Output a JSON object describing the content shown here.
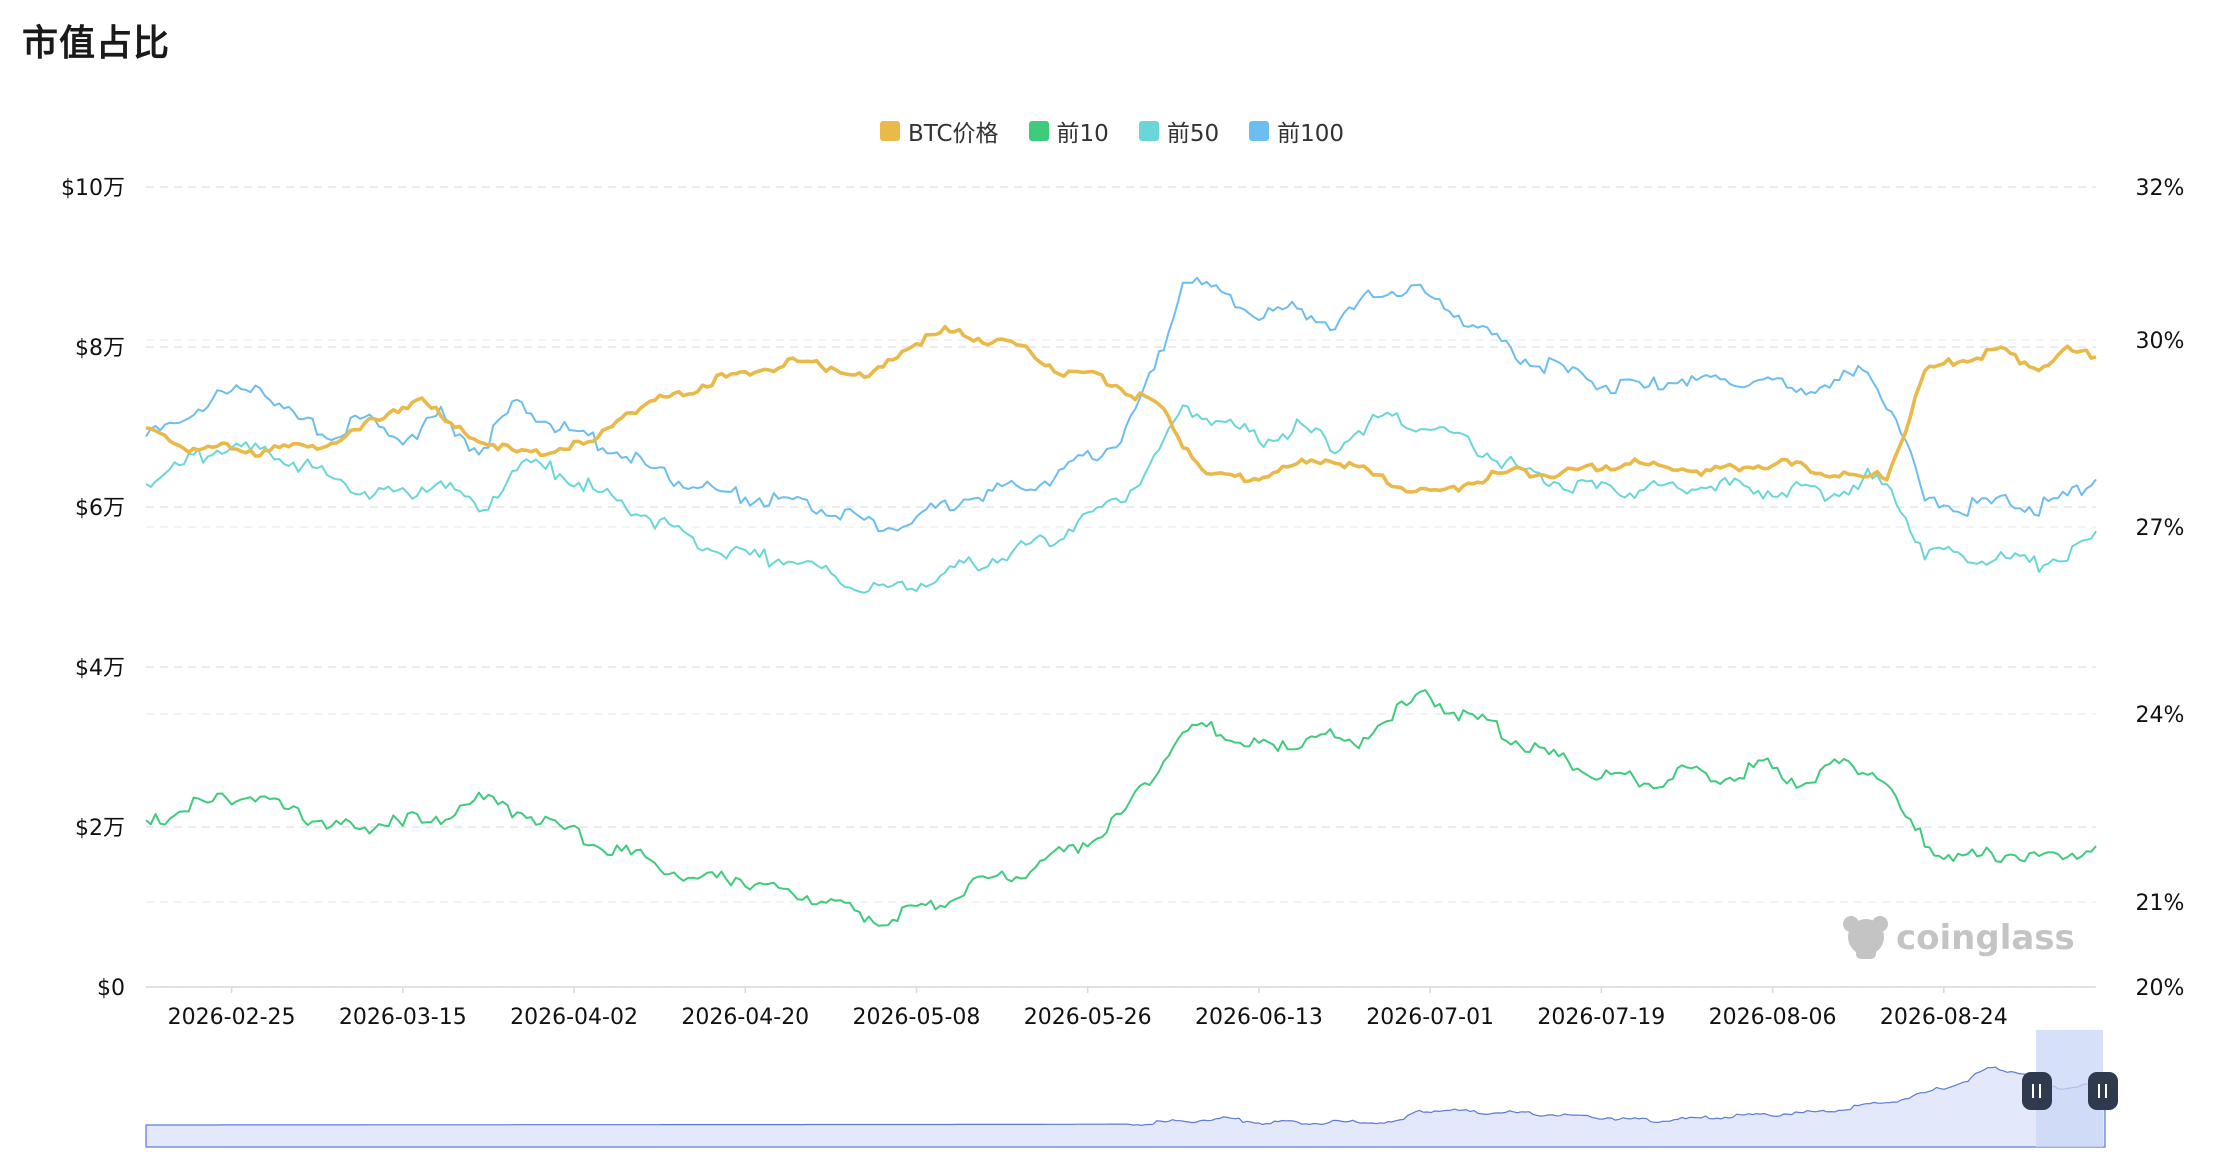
{
  "page": {
    "title": "市值占比",
    "watermark": "coinglass"
  },
  "legend": [
    {
      "label": "BTC价格",
      "color": "#E9B949"
    },
    {
      "label": "前10",
      "color": "#3FCB7C"
    },
    {
      "label": "前50",
      "color": "#6AD6D8"
    },
    {
      "label": "前100",
      "color": "#6CBEF0"
    }
  ],
  "chart_data": {
    "type": "line",
    "x_ticks": [
      "2026-02-25",
      "2026-03-15",
      "2026-04-02",
      "2026-04-20",
      "2026-05-08",
      "2026-05-26",
      "2026-06-13",
      "2026-07-01",
      "2026-07-19",
      "2026-08-06",
      "2026-08-24"
    ],
    "y_left": {
      "ticks": [
        "$0",
        "$2万",
        "$4万",
        "$6万",
        "$8万",
        "$10万"
      ],
      "values": [
        0,
        20000,
        40000,
        60000,
        80000,
        100000
      ],
      "ylim": [
        0,
        100000
      ]
    },
    "y_right": {
      "ticks": [
        "20%",
        "21%",
        "24%",
        "27%",
        "30%",
        "32%"
      ],
      "note": "non-linear axis; tick positions follow the chart"
    },
    "grid": true,
    "legend_position": "top-center",
    "date_range": [
      "2026-02-16",
      "2026-09-09"
    ],
    "series": [
      {
        "name": "BTC价格",
        "axis": "left",
        "color": "#E9B949",
        "points": [
          [
            "2026-02-16",
            70000
          ],
          [
            "2026-02-20",
            67000
          ],
          [
            "2026-02-23",
            68000
          ],
          [
            "2026-02-27",
            66500
          ],
          [
            "2026-03-02",
            68000
          ],
          [
            "2026-03-06",
            67000
          ],
          [
            "2026-03-10",
            70000
          ],
          [
            "2026-03-13",
            71000
          ],
          [
            "2026-03-17",
            74000
          ],
          [
            "2026-03-20",
            70000
          ],
          [
            "2026-03-24",
            68000
          ],
          [
            "2026-03-28",
            66500
          ],
          [
            "2026-04-01",
            67500
          ],
          [
            "2026-04-04",
            68000
          ],
          [
            "2026-04-07",
            71500
          ],
          [
            "2026-04-10",
            73000
          ],
          [
            "2026-04-14",
            74500
          ],
          [
            "2026-04-17",
            76000
          ],
          [
            "2026-04-21",
            77000
          ],
          [
            "2026-04-25",
            78000
          ],
          [
            "2026-04-29",
            77500
          ],
          [
            "2026-05-03",
            76000
          ],
          [
            "2026-05-07",
            80000
          ],
          [
            "2026-05-11",
            82000
          ],
          [
            "2026-05-15",
            81000
          ],
          [
            "2026-05-19",
            80000
          ],
          [
            "2026-05-23",
            77000
          ],
          [
            "2026-05-27",
            76500
          ],
          [
            "2026-05-31",
            74000
          ],
          [
            "2026-06-03",
            72000
          ],
          [
            "2026-06-05",
            68000
          ],
          [
            "2026-06-08",
            64000
          ],
          [
            "2026-06-12",
            63500
          ],
          [
            "2026-06-16",
            65000
          ],
          [
            "2026-06-20",
            66000
          ],
          [
            "2026-06-24",
            64500
          ],
          [
            "2026-06-28",
            62500
          ],
          [
            "2026-07-02",
            61500
          ],
          [
            "2026-07-06",
            63500
          ],
          [
            "2026-07-10",
            64500
          ],
          [
            "2026-07-14",
            64000
          ],
          [
            "2026-07-18",
            65000
          ],
          [
            "2026-07-22",
            65500
          ],
          [
            "2026-07-26",
            65000
          ],
          [
            "2026-07-30",
            64500
          ],
          [
            "2026-08-03",
            65000
          ],
          [
            "2026-08-07",
            65500
          ],
          [
            "2026-08-11",
            64500
          ],
          [
            "2026-08-15",
            63500
          ],
          [
            "2026-08-18",
            64000
          ],
          [
            "2026-08-20",
            70000
          ],
          [
            "2026-08-22",
            77000
          ],
          [
            "2026-08-26",
            78500
          ],
          [
            "2026-08-30",
            79500
          ],
          [
            "2026-09-03",
            77500
          ],
          [
            "2026-09-06",
            79500
          ],
          [
            "2026-09-09",
            79000
          ]
        ]
      },
      {
        "name": "前10",
        "axis": "right",
        "color": "#3FCB7C",
        "points": [
          [
            "2026-02-16",
            22.2
          ],
          [
            "2026-02-20",
            22.5
          ],
          [
            "2026-02-24",
            22.6
          ],
          [
            "2026-02-28",
            22.7
          ],
          [
            "2026-03-03",
            22.4
          ],
          [
            "2026-03-07",
            22.3
          ],
          [
            "2026-03-11",
            22.1
          ],
          [
            "2026-03-14",
            22.4
          ],
          [
            "2026-03-18",
            22.2
          ],
          [
            "2026-03-22",
            22.7
          ],
          [
            "2026-03-26",
            22.5
          ],
          [
            "2026-03-30",
            22.3
          ],
          [
            "2026-04-03",
            22.0
          ],
          [
            "2026-04-07",
            21.8
          ],
          [
            "2026-04-11",
            21.6
          ],
          [
            "2026-04-15",
            21.3
          ],
          [
            "2026-04-19",
            21.4
          ],
          [
            "2026-04-23",
            21.2
          ],
          [
            "2026-04-27",
            21.1
          ],
          [
            "2026-05-01",
            20.9
          ],
          [
            "2026-05-05",
            20.8
          ],
          [
            "2026-05-09",
            20.9
          ],
          [
            "2026-05-13",
            21.2
          ],
          [
            "2026-05-17",
            21.4
          ],
          [
            "2026-05-21",
            21.6
          ],
          [
            "2026-05-25",
            21.9
          ],
          [
            "2026-05-29",
            22.3
          ],
          [
            "2026-06-01",
            22.8
          ],
          [
            "2026-06-04",
            23.6
          ],
          [
            "2026-06-07",
            23.8
          ],
          [
            "2026-06-11",
            23.6
          ],
          [
            "2026-06-15",
            23.4
          ],
          [
            "2026-06-19",
            23.7
          ],
          [
            "2026-06-23",
            23.5
          ],
          [
            "2026-06-27",
            24.0
          ],
          [
            "2026-07-01",
            24.3
          ],
          [
            "2026-07-04",
            24.0
          ],
          [
            "2026-07-08",
            23.8
          ],
          [
            "2026-07-12",
            23.4
          ],
          [
            "2026-07-16",
            23.2
          ],
          [
            "2026-07-20",
            23.0
          ],
          [
            "2026-07-24",
            22.9
          ],
          [
            "2026-07-28",
            23.1
          ],
          [
            "2026-08-01",
            23.0
          ],
          [
            "2026-08-05",
            23.2
          ],
          [
            "2026-08-09",
            22.9
          ],
          [
            "2026-08-13",
            23.2
          ],
          [
            "2026-08-17",
            23.1
          ],
          [
            "2026-08-20",
            22.3
          ],
          [
            "2026-08-23",
            21.8
          ],
          [
            "2026-08-27",
            21.7
          ],
          [
            "2026-08-31",
            21.8
          ],
          [
            "2026-09-04",
            21.7
          ],
          [
            "2026-09-09",
            21.9
          ]
        ]
      },
      {
        "name": "前50",
        "axis": "right",
        "color": "#6AD6D8",
        "points": [
          [
            "2026-02-16",
            27.7
          ],
          [
            "2026-02-20",
            28.0
          ],
          [
            "2026-02-24",
            28.3
          ],
          [
            "2026-02-28",
            28.2
          ],
          [
            "2026-03-03",
            28.1
          ],
          [
            "2026-03-07",
            27.8
          ],
          [
            "2026-03-11",
            27.6
          ],
          [
            "2026-03-15",
            27.5
          ],
          [
            "2026-03-19",
            27.8
          ],
          [
            "2026-03-23",
            27.2
          ],
          [
            "2026-03-27",
            28.0
          ],
          [
            "2026-03-31",
            27.9
          ],
          [
            "2026-04-04",
            27.6
          ],
          [
            "2026-04-08",
            27.3
          ],
          [
            "2026-04-12",
            27.0
          ],
          [
            "2026-04-16",
            26.7
          ],
          [
            "2026-04-20",
            26.5
          ],
          [
            "2026-04-24",
            26.5
          ],
          [
            "2026-04-28",
            26.3
          ],
          [
            "2026-05-02",
            26.1
          ],
          [
            "2026-05-06",
            26.0
          ],
          [
            "2026-05-10",
            26.2
          ],
          [
            "2026-05-14",
            26.4
          ],
          [
            "2026-05-18",
            26.6
          ],
          [
            "2026-05-22",
            26.8
          ],
          [
            "2026-05-26",
            27.2
          ],
          [
            "2026-05-30",
            27.5
          ],
          [
            "2026-06-02",
            28.1
          ],
          [
            "2026-06-05",
            28.9
          ],
          [
            "2026-06-09",
            28.7
          ],
          [
            "2026-06-13",
            28.4
          ],
          [
            "2026-06-17",
            28.6
          ],
          [
            "2026-06-21",
            28.3
          ],
          [
            "2026-06-25",
            28.7
          ],
          [
            "2026-06-29",
            28.7
          ],
          [
            "2026-07-03",
            28.5
          ],
          [
            "2026-07-07",
            28.2
          ],
          [
            "2026-07-11",
            27.9
          ],
          [
            "2026-07-15",
            27.7
          ],
          [
            "2026-07-19",
            27.6
          ],
          [
            "2026-07-23",
            27.6
          ],
          [
            "2026-07-27",
            27.6
          ],
          [
            "2026-07-31",
            27.7
          ],
          [
            "2026-08-04",
            27.6
          ],
          [
            "2026-08-08",
            27.6
          ],
          [
            "2026-08-12",
            27.5
          ],
          [
            "2026-08-16",
            27.8
          ],
          [
            "2026-08-19",
            27.5
          ],
          [
            "2026-08-22",
            26.6
          ],
          [
            "2026-08-26",
            26.5
          ],
          [
            "2026-08-30",
            26.5
          ],
          [
            "2026-09-03",
            26.4
          ],
          [
            "2026-09-06",
            26.6
          ],
          [
            "2026-09-09",
            26.8
          ]
        ]
      },
      {
        "name": "前100",
        "axis": "right",
        "color": "#6CBEF0",
        "points": [
          [
            "2026-02-16",
            28.4
          ],
          [
            "2026-02-20",
            28.8
          ],
          [
            "2026-02-24",
            29.1
          ],
          [
            "2026-02-28",
            29.3
          ],
          [
            "2026-03-03",
            28.8
          ],
          [
            "2026-03-07",
            28.5
          ],
          [
            "2026-03-11",
            28.7
          ],
          [
            "2026-03-15",
            28.4
          ],
          [
            "2026-03-19",
            28.8
          ],
          [
            "2026-03-23",
            28.2
          ],
          [
            "2026-03-27",
            29.0
          ],
          [
            "2026-03-31",
            28.6
          ],
          [
            "2026-04-04",
            28.4
          ],
          [
            "2026-04-08",
            28.1
          ],
          [
            "2026-04-12",
            27.8
          ],
          [
            "2026-04-16",
            27.6
          ],
          [
            "2026-04-20",
            27.5
          ],
          [
            "2026-04-24",
            27.4
          ],
          [
            "2026-04-28",
            27.3
          ],
          [
            "2026-05-02",
            27.1
          ],
          [
            "2026-05-06",
            27.0
          ],
          [
            "2026-05-10",
            27.3
          ],
          [
            "2026-05-14",
            27.5
          ],
          [
            "2026-05-18",
            27.6
          ],
          [
            "2026-05-22",
            27.8
          ],
          [
            "2026-05-26",
            28.1
          ],
          [
            "2026-05-30",
            28.5
          ],
          [
            "2026-06-02",
            29.5
          ],
          [
            "2026-06-05",
            30.8
          ],
          [
            "2026-06-09",
            30.6
          ],
          [
            "2026-06-13",
            30.3
          ],
          [
            "2026-06-17",
            30.4
          ],
          [
            "2026-06-21",
            30.2
          ],
          [
            "2026-06-25",
            30.6
          ],
          [
            "2026-06-29",
            30.7
          ],
          [
            "2026-07-03",
            30.4
          ],
          [
            "2026-07-07",
            30.1
          ],
          [
            "2026-07-11",
            29.7
          ],
          [
            "2026-07-15",
            29.5
          ],
          [
            "2026-07-19",
            29.3
          ],
          [
            "2026-07-23",
            29.2
          ],
          [
            "2026-07-27",
            29.4
          ],
          [
            "2026-07-31",
            29.3
          ],
          [
            "2026-08-04",
            29.4
          ],
          [
            "2026-08-08",
            29.2
          ],
          [
            "2026-08-12",
            29.3
          ],
          [
            "2026-08-16",
            29.5
          ],
          [
            "2026-08-19",
            28.8
          ],
          [
            "2026-08-22",
            27.4
          ],
          [
            "2026-08-26",
            27.3
          ],
          [
            "2026-08-30",
            27.4
          ],
          [
            "2026-09-03",
            27.3
          ],
          [
            "2026-09-06",
            27.5
          ],
          [
            "2026-09-09",
            27.8
          ]
        ]
      }
    ],
    "navigator": {
      "selected_range": "end",
      "overview_note": "full-history overview of the BTC price"
    }
  }
}
